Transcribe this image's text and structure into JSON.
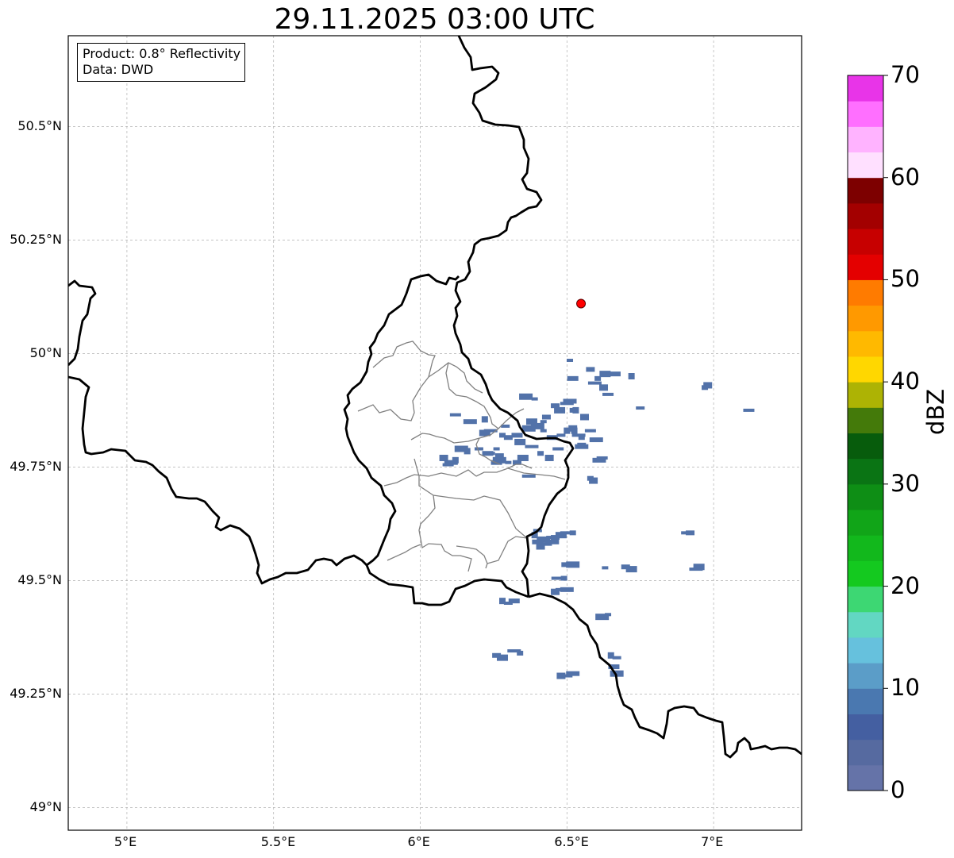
{
  "title": "29.11.2025 03:00 UTC",
  "info": {
    "product": "Product: 0.8° Reflectivity",
    "source": "Data: DWD"
  },
  "axes": {
    "lon_ticks": [
      "5°E",
      "5.5°E",
      "6°E",
      "6.5°E",
      "7°E"
    ],
    "lat_ticks": [
      "50.5°N",
      "50.25°N",
      "50°N",
      "49.75°N",
      "49.5°N",
      "49.25°N",
      "49°N"
    ],
    "lon_values": [
      5.0,
      5.5,
      6.0,
      6.5,
      7.0
    ],
    "lat_values": [
      50.5,
      50.25,
      50.0,
      49.75,
      49.5,
      49.25,
      49.0
    ],
    "lon_range": [
      4.8,
      7.3
    ],
    "lat_range": [
      48.95,
      50.7
    ],
    "grid": true
  },
  "colorbar": {
    "label": "dBZ",
    "ticks": [
      "0",
      "10",
      "20",
      "30",
      "40",
      "50",
      "60",
      "70"
    ],
    "range": [
      0,
      70
    ],
    "colors": [
      "#6573a8",
      "#566aa0",
      "#445fa1",
      "#4a78b0",
      "#5b9dc8",
      "#66c1dd",
      "#62d7c2",
      "#3dd773",
      "#14c91f",
      "#12b81c",
      "#11a518",
      "#0e8e15",
      "#0a7414",
      "#075c0c",
      "#447a0a",
      "#adb304",
      "#ffd700",
      "#ffb900",
      "#ff9900",
      "#ff7b00",
      "#e40000",
      "#c70000",
      "#a30000",
      "#7d0000",
      "#ffe0ff",
      "#ffb3ff",
      "#ff6fff",
      "#e834e8"
    ]
  },
  "radar_site": {
    "lon": 6.548,
    "lat": 50.11,
    "color": "#ff0000"
  },
  "echo_color": "#5272a9",
  "echoes": [
    [
      6.51,
      49.985
    ],
    [
      6.58,
      49.965
    ],
    [
      6.63,
      49.955
    ],
    [
      6.595,
      49.935
    ],
    [
      6.605,
      49.945
    ],
    [
      6.625,
      49.925
    ],
    [
      6.64,
      49.91
    ],
    [
      6.66,
      49.955
    ],
    [
      6.72,
      49.95
    ],
    [
      6.75,
      49.88
    ],
    [
      6.52,
      49.945
    ],
    [
      6.36,
      49.905
    ],
    [
      6.39,
      49.9
    ],
    [
      6.46,
      49.885
    ],
    [
      6.475,
      49.875
    ],
    [
      6.5,
      49.89
    ],
    [
      6.52,
      49.875
    ],
    [
      6.56,
      49.86
    ],
    [
      6.12,
      49.865
    ],
    [
      6.17,
      49.85
    ],
    [
      6.22,
      49.855
    ],
    [
      6.29,
      49.84
    ],
    [
      6.33,
      49.82
    ],
    [
      6.37,
      49.835
    ],
    [
      6.42,
      49.83
    ],
    [
      6.3,
      49.815
    ],
    [
      6.34,
      49.805
    ],
    [
      6.38,
      49.795
    ],
    [
      6.41,
      49.78
    ],
    [
      6.44,
      49.77
    ],
    [
      6.47,
      49.79
    ],
    [
      6.55,
      49.795
    ],
    [
      6.16,
      49.785
    ],
    [
      6.2,
      49.79
    ],
    [
      6.23,
      49.78
    ],
    [
      6.14,
      49.79
    ],
    [
      6.26,
      49.79
    ],
    [
      6.27,
      49.775
    ],
    [
      6.22,
      49.825
    ],
    [
      6.24,
      49.83
    ],
    [
      6.28,
      49.82
    ],
    [
      6.08,
      49.77
    ],
    [
      6.095,
      49.755
    ],
    [
      6.105,
      49.76
    ],
    [
      6.12,
      49.765
    ],
    [
      6.24,
      49.78
    ],
    [
      6.26,
      49.76
    ],
    [
      6.27,
      49.765
    ],
    [
      6.3,
      49.76
    ],
    [
      6.33,
      49.76
    ],
    [
      6.35,
      49.77
    ],
    [
      6.54,
      49.82
    ],
    [
      6.55,
      49.815
    ],
    [
      6.52,
      49.835
    ],
    [
      6.58,
      49.83
    ],
    [
      6.6,
      49.81
    ],
    [
      6.5,
      49.83
    ],
    [
      6.48,
      49.82
    ],
    [
      6.45,
      49.815
    ],
    [
      6.4,
      49.84
    ],
    [
      6.42,
      49.85
    ],
    [
      6.43,
      49.86
    ],
    [
      6.38,
      49.85
    ],
    [
      6.37,
      49.73
    ],
    [
      6.58,
      49.725
    ],
    [
      6.59,
      49.72
    ],
    [
      6.62,
      49.77
    ],
    [
      6.61,
      49.765
    ],
    [
      6.525,
      49.83
    ],
    [
      6.55,
      49.8
    ],
    [
      6.4,
      49.585
    ],
    [
      6.42,
      49.59
    ],
    [
      6.44,
      49.595
    ],
    [
      6.46,
      49.595
    ],
    [
      6.48,
      49.6
    ],
    [
      6.5,
      49.605
    ],
    [
      6.52,
      49.605
    ],
    [
      6.41,
      49.575
    ],
    [
      6.43,
      49.58
    ],
    [
      6.45,
      49.585
    ],
    [
      6.39,
      49.6
    ],
    [
      6.4,
      49.61
    ],
    [
      6.5,
      49.535
    ],
    [
      6.52,
      49.535
    ],
    [
      6.63,
      49.528
    ],
    [
      6.7,
      49.53
    ],
    [
      6.72,
      49.525
    ],
    [
      6.47,
      49.505
    ],
    [
      6.49,
      49.505
    ],
    [
      6.46,
      49.475
    ],
    [
      6.48,
      49.48
    ],
    [
      6.5,
      49.48
    ],
    [
      6.28,
      49.455
    ],
    [
      6.3,
      49.45
    ],
    [
      6.32,
      49.455
    ],
    [
      6.62,
      49.42
    ],
    [
      6.64,
      49.425
    ],
    [
      6.26,
      49.335
    ],
    [
      6.28,
      49.33
    ],
    [
      6.32,
      49.345
    ],
    [
      6.34,
      49.34
    ],
    [
      6.48,
      49.29
    ],
    [
      6.5,
      49.29
    ],
    [
      6.52,
      49.295
    ],
    [
      6.65,
      49.335
    ],
    [
      6.67,
      49.33
    ],
    [
      6.66,
      49.31
    ],
    [
      6.67,
      49.295
    ],
    [
      6.9,
      49.605
    ],
    [
      6.92,
      49.605
    ],
    [
      6.95,
      49.53
    ],
    [
      6.94,
      49.525
    ],
    [
      6.97,
      49.925
    ],
    [
      6.98,
      49.93
    ],
    [
      7.12,
      49.875
    ],
    [
      6.51,
      49.895
    ],
    [
      6.53,
      49.875
    ]
  ],
  "map_lines": {
    "national_border_color": "#000000",
    "admin_border_color": "#808080"
  }
}
